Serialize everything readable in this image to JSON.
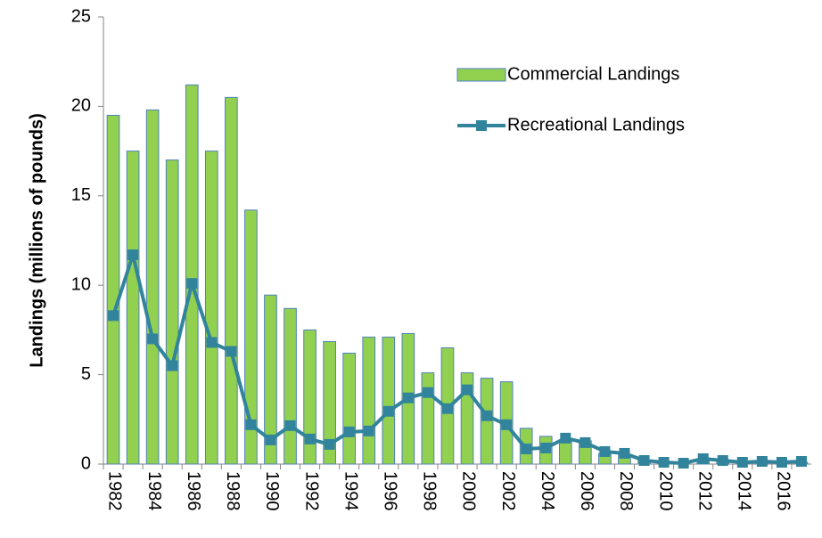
{
  "chart_data": {
    "type": "bar",
    "y_label": "Landings (millions of pounds)",
    "categories": [
      "1982",
      null,
      "1984",
      null,
      "1986",
      null,
      "1988",
      null,
      "1990",
      null,
      "1992",
      null,
      "1994",
      null,
      "1996",
      null,
      "1998",
      null,
      "2000",
      null,
      "2002",
      null,
      "2004",
      null,
      "2006",
      null,
      "2008",
      null,
      "2010",
      null,
      "2012",
      null,
      "2014",
      null,
      "2016",
      null
    ],
    "series": [
      {
        "name": "Commercial Landings",
        "type": "bar",
        "color": "#92d050",
        "edge_color": "#4f81bd",
        "values": [
          19.5,
          17.5,
          19.8,
          17.0,
          21.2,
          17.5,
          20.5,
          14.2,
          9.45,
          8.7,
          7.5,
          6.85,
          6.2,
          7.1,
          7.1,
          7.3,
          5.1,
          6.5,
          5.1,
          4.8,
          4.6,
          2.0,
          1.55,
          1.3,
          1.3,
          0.6,
          0.5,
          0.2,
          0.1,
          0.1,
          0.2,
          0.15,
          0.1,
          0.1,
          0.1,
          0.1
        ]
      },
      {
        "name": "Recreational Landings",
        "type": "line",
        "color": "#31849b",
        "values": [
          8.3,
          11.7,
          7.0,
          5.5,
          10.1,
          6.8,
          6.3,
          2.2,
          1.35,
          2.15,
          1.4,
          1.1,
          1.8,
          1.85,
          2.95,
          3.7,
          4.0,
          3.1,
          4.15,
          2.7,
          2.2,
          0.85,
          0.9,
          1.45,
          1.2,
          0.7,
          0.6,
          0.2,
          0.1,
          0.05,
          0.3,
          0.2,
          0.1,
          0.15,
          0.1,
          0.15
        ]
      }
    ],
    "ylim": [
      0,
      25
    ],
    "yticks": [
      0,
      5,
      10,
      15,
      20,
      25
    ],
    "grid": false,
    "legend": "upper-right"
  }
}
